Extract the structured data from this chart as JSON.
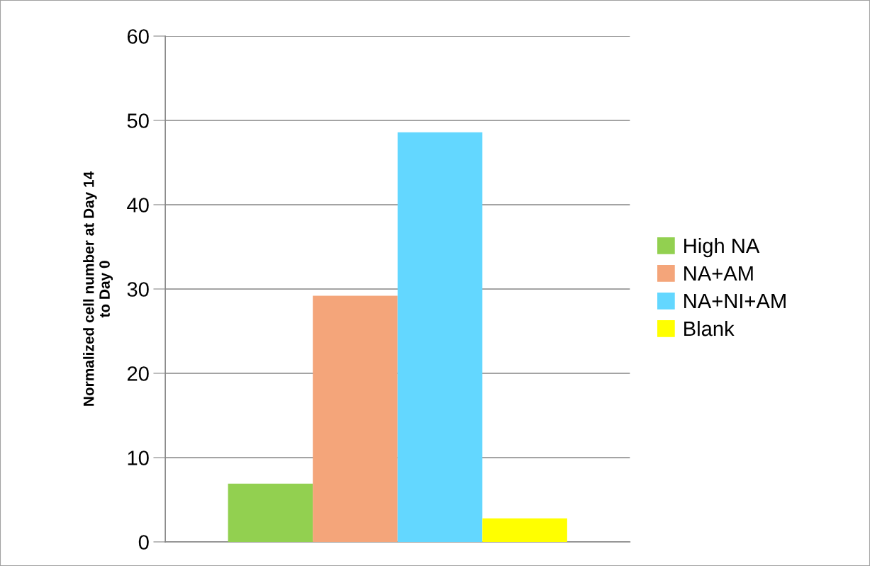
{
  "chart_data": {
    "type": "bar",
    "ylabel": "Normalized cell number at Day 14\nto Day 0",
    "categories": [
      null
    ],
    "series": [
      {
        "name": "High NA",
        "color": "#92d050",
        "values": [
          6.9
        ]
      },
      {
        "name": "NA+AM",
        "color": "#f4a57a",
        "values": [
          29.2
        ]
      },
      {
        "name": "NA+NI+AM",
        "color": "#63d7ff",
        "values": [
          48.6
        ]
      },
      {
        "name": "Blank",
        "color": "#ffff00",
        "values": [
          2.8
        ]
      }
    ],
    "ylim": [
      0,
      60
    ],
    "yticks": [
      0,
      10,
      20,
      30,
      40,
      50,
      60
    ],
    "grid": "y",
    "legend": "right"
  }
}
